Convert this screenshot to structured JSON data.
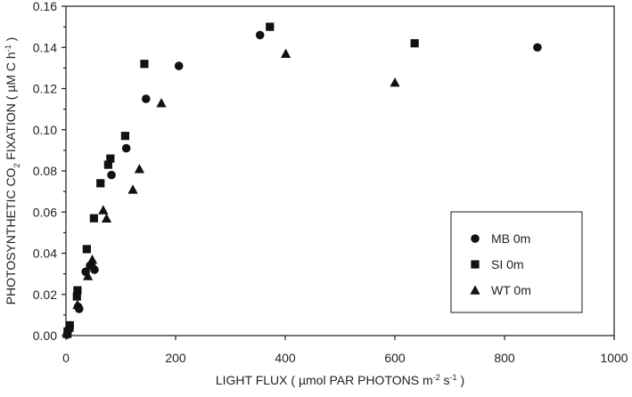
{
  "chart_data": {
    "type": "scatter",
    "xlabel": {
      "prefix": "LIGHT FLUX ( µmol PAR PHOTONS m",
      "sup1": "-2",
      "middle": " s",
      "sup2": "-1",
      "suffix": " )"
    },
    "ylabel": {
      "prefix": "PHOTOSYNTHETIC CO",
      "sub": "2",
      "middle": " FIXATION ( µM C h",
      "sup": "-1",
      "suffix": " )"
    },
    "xlim": [
      0,
      1000
    ],
    "ylim": [
      0,
      0.16
    ],
    "x_ticks": [
      {
        "value": 0,
        "label": "0"
      },
      {
        "value": 200,
        "label": "200"
      },
      {
        "value": 400,
        "label": "400"
      },
      {
        "value": 600,
        "label": "600"
      },
      {
        "value": 800,
        "label": "800"
      },
      {
        "value": 1000,
        "label": "1000"
      }
    ],
    "y_ticks": [
      {
        "value": 0,
        "label": "0.00"
      },
      {
        "value": 0.02,
        "label": "0.02"
      },
      {
        "value": 0.04,
        "label": "0.04"
      },
      {
        "value": 0.06,
        "label": "0.06"
      },
      {
        "value": 0.08,
        "label": "0.08"
      },
      {
        "value": 0.1,
        "label": "0.10"
      },
      {
        "value": 0.12,
        "label": "0.12"
      },
      {
        "value": 0.14,
        "label": "0.14"
      },
      {
        "value": 0.16,
        "label": "0.16"
      }
    ],
    "grid": false,
    "legend": {
      "placement": "lower-right"
    },
    "series": [
      {
        "name": "MB 0m",
        "marker": "circle",
        "color": "#111111",
        "points": [
          {
            "x": 2,
            "y": 0.0005
          },
          {
            "x": 5,
            "y": 0.003
          },
          {
            "x": 22,
            "y": 0.014
          },
          {
            "x": 24,
            "y": 0.013
          },
          {
            "x": 36,
            "y": 0.031
          },
          {
            "x": 44,
            "y": 0.034
          },
          {
            "x": 52,
            "y": 0.032
          },
          {
            "x": 83,
            "y": 0.078
          },
          {
            "x": 110,
            "y": 0.091
          },
          {
            "x": 146,
            "y": 0.115
          },
          {
            "x": 206,
            "y": 0.131
          },
          {
            "x": 354,
            "y": 0.146
          },
          {
            "x": 860,
            "y": 0.14
          }
        ]
      },
      {
        "name": "SI  0m",
        "marker": "square",
        "color": "#111111",
        "points": [
          {
            "x": 3,
            "y": 0.002
          },
          {
            "x": 7,
            "y": 0.005
          },
          {
            "x": 20,
            "y": 0.019
          },
          {
            "x": 21,
            "y": 0.022
          },
          {
            "x": 38,
            "y": 0.042
          },
          {
            "x": 51,
            "y": 0.057
          },
          {
            "x": 63,
            "y": 0.074
          },
          {
            "x": 77,
            "y": 0.083
          },
          {
            "x": 81,
            "y": 0.086
          },
          {
            "x": 108,
            "y": 0.097
          },
          {
            "x": 143,
            "y": 0.132
          },
          {
            "x": 372,
            "y": 0.15
          },
          {
            "x": 636,
            "y": 0.142
          }
        ]
      },
      {
        "name": "WT 0m",
        "marker": "triangle",
        "color": "#111111",
        "points": [
          {
            "x": 2,
            "y": 0.001
          },
          {
            "x": 6,
            "y": 0.004
          },
          {
            "x": 21,
            "y": 0.015
          },
          {
            "x": 40,
            "y": 0.029
          },
          {
            "x": 48,
            "y": 0.037
          },
          {
            "x": 50,
            "y": 0.034
          },
          {
            "x": 68,
            "y": 0.061
          },
          {
            "x": 74,
            "y": 0.057
          },
          {
            "x": 122,
            "y": 0.071
          },
          {
            "x": 134,
            "y": 0.081
          },
          {
            "x": 174,
            "y": 0.113
          },
          {
            "x": 401,
            "y": 0.137
          },
          {
            "x": 600,
            "y": 0.123
          }
        ]
      }
    ]
  }
}
